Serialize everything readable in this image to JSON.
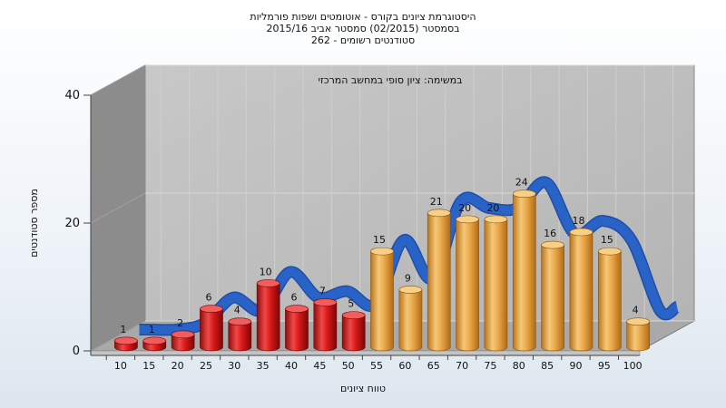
{
  "chart_data": {
    "type": "bar",
    "title_lines": [
      "היסטוגרמת ציונים בקורס - אוטומטים ושפות פורמליות",
      "בסמסטר  (02/2015)  סמסטר אביב 2015/16",
      "262 - סטודנטים רשומים"
    ],
    "annotation": "במשימה: ציון סופי במחשב המרכזי",
    "xlabel": "טווח ציונים",
    "ylabel": "מספר סטודנטים",
    "categories": [
      "10",
      "15",
      "20",
      "25",
      "30",
      "35",
      "40",
      "45",
      "50",
      "55",
      "60",
      "65",
      "70",
      "75",
      "80",
      "85",
      "90",
      "95",
      "100"
    ],
    "values": [
      1,
      1,
      2,
      6,
      4,
      10,
      6,
      7,
      5,
      15,
      9,
      21,
      20,
      20,
      24,
      16,
      18,
      15,
      4
    ],
    "fail_threshold": 55,
    "ylim": [
      0,
      40
    ],
    "yticks": [
      0,
      20,
      40
    ],
    "grid": true,
    "colors": {
      "fail": "#d81818",
      "pass": "#e8a340",
      "trend": "#2a63c8",
      "back_wall": "#bdbdbd",
      "left_wall": "#8c8c8c",
      "floor": "#a9a9a9"
    }
  }
}
